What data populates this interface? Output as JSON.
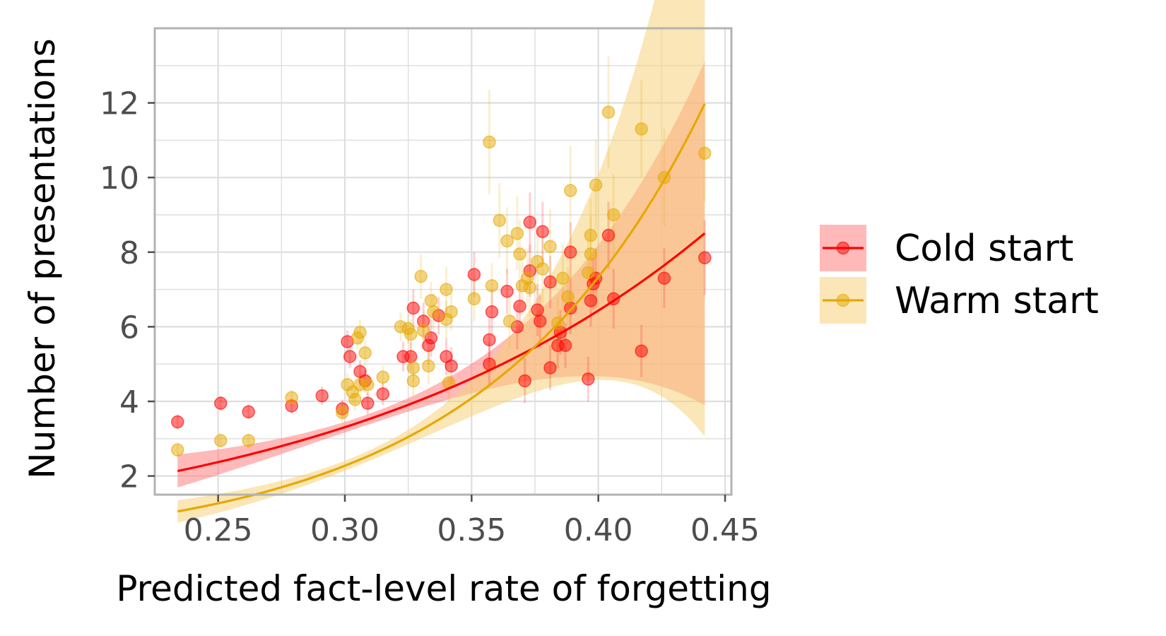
{
  "chart_data": {
    "type": "scatter",
    "title": "",
    "xlabel": "Predicted fact-level rate of forgetting",
    "ylabel": "Number of presentations",
    "xlim": [
      0.225,
      0.4525
    ],
    "ylim": [
      1.5,
      14.0
    ],
    "x_ticks": [
      0.25,
      0.3,
      0.35,
      0.4,
      0.45
    ],
    "x_tick_labels": [
      "0.25",
      "0.30",
      "0.35",
      "0.40",
      "0.45"
    ],
    "y_ticks": [
      2,
      4,
      6,
      8,
      10,
      12
    ],
    "y_tick_labels": [
      "2",
      "4",
      "6",
      "8",
      "10",
      "12"
    ],
    "grid": true,
    "legend_position": "right",
    "series": [
      {
        "name": "Cold start",
        "color": "#ff0000",
        "band_color": "#ff8080",
        "fit": {
          "a": 0.45,
          "b": 6.65,
          "x_range": [
            0.234,
            0.442
          ],
          "ci": 0.04
        },
        "points": [
          {
            "x": 0.234,
            "y": 3.45,
            "err": 0.2
          },
          {
            "x": 0.251,
            "y": 3.95,
            "err": 0.2
          },
          {
            "x": 0.262,
            "y": 3.72,
            "err": 0.2
          },
          {
            "x": 0.279,
            "y": 3.88,
            "err": 0.2
          },
          {
            "x": 0.291,
            "y": 4.15,
            "err": 0.25
          },
          {
            "x": 0.299,
            "y": 3.8,
            "err": 0.25
          },
          {
            "x": 0.301,
            "y": 5.6,
            "err": 0.3
          },
          {
            "x": 0.302,
            "y": 5.2,
            "err": 0.3
          },
          {
            "x": 0.306,
            "y": 4.8,
            "err": 0.3
          },
          {
            "x": 0.308,
            "y": 4.55,
            "err": 0.3
          },
          {
            "x": 0.309,
            "y": 3.95,
            "err": 0.3
          },
          {
            "x": 0.315,
            "y": 4.2,
            "err": 0.3
          },
          {
            "x": 0.323,
            "y": 5.2,
            "err": 0.4
          },
          {
            "x": 0.326,
            "y": 5.2,
            "err": 0.4
          },
          {
            "x": 0.327,
            "y": 6.5,
            "err": 0.5
          },
          {
            "x": 0.331,
            "y": 6.15,
            "err": 0.5
          },
          {
            "x": 0.333,
            "y": 5.5,
            "err": 0.5
          },
          {
            "x": 0.334,
            "y": 5.7,
            "err": 0.5
          },
          {
            "x": 0.337,
            "y": 6.3,
            "err": 0.5
          },
          {
            "x": 0.34,
            "y": 5.2,
            "err": 0.5
          },
          {
            "x": 0.342,
            "y": 4.95,
            "err": 0.5
          },
          {
            "x": 0.351,
            "y": 7.4,
            "err": 0.6
          },
          {
            "x": 0.357,
            "y": 5.65,
            "err": 0.6
          },
          {
            "x": 0.357,
            "y": 5.0,
            "err": 0.6
          },
          {
            "x": 0.358,
            "y": 6.4,
            "err": 0.6
          },
          {
            "x": 0.364,
            "y": 6.95,
            "err": 0.6
          },
          {
            "x": 0.368,
            "y": 6.0,
            "err": 0.6
          },
          {
            "x": 0.369,
            "y": 6.55,
            "err": 0.7
          },
          {
            "x": 0.371,
            "y": 4.55,
            "err": 0.6
          },
          {
            "x": 0.373,
            "y": 8.8,
            "err": 0.8
          },
          {
            "x": 0.373,
            "y": 7.5,
            "err": 0.7
          },
          {
            "x": 0.376,
            "y": 6.45,
            "err": 0.7
          },
          {
            "x": 0.377,
            "y": 6.15,
            "err": 0.7
          },
          {
            "x": 0.378,
            "y": 8.55,
            "err": 0.8
          },
          {
            "x": 0.381,
            "y": 4.9,
            "err": 0.6
          },
          {
            "x": 0.381,
            "y": 7.2,
            "err": 0.7
          },
          {
            "x": 0.384,
            "y": 5.5,
            "err": 0.6
          },
          {
            "x": 0.385,
            "y": 5.85,
            "err": 0.6
          },
          {
            "x": 0.387,
            "y": 5.5,
            "err": 0.6
          },
          {
            "x": 0.389,
            "y": 6.5,
            "err": 0.7
          },
          {
            "x": 0.389,
            "y": 8.0,
            "err": 0.8
          },
          {
            "x": 0.396,
            "y": 4.6,
            "err": 0.6
          },
          {
            "x": 0.397,
            "y": 6.7,
            "err": 0.7
          },
          {
            "x": 0.398,
            "y": 7.15,
            "err": 0.7
          },
          {
            "x": 0.399,
            "y": 7.3,
            "err": 0.8
          },
          {
            "x": 0.404,
            "y": 8.45,
            "err": 0.9
          },
          {
            "x": 0.406,
            "y": 6.75,
            "err": 0.8
          },
          {
            "x": 0.417,
            "y": 5.35,
            "err": 0.7
          },
          {
            "x": 0.426,
            "y": 7.3,
            "err": 0.8
          },
          {
            "x": 0.442,
            "y": 7.85,
            "err": 1.0
          }
        ]
      },
      {
        "name": "Warm start",
        "color": "#e6a800",
        "band_color": "#f5d27a",
        "fit": {
          "a": 0.068,
          "b": 11.7,
          "x_range": [
            0.234,
            0.442
          ],
          "ci": 0.055
        },
        "points": [
          {
            "x": 0.234,
            "y": 2.7,
            "err": 0.2
          },
          {
            "x": 0.251,
            "y": 2.95,
            "err": 0.2
          },
          {
            "x": 0.262,
            "y": 2.95,
            "err": 0.2
          },
          {
            "x": 0.279,
            "y": 4.1,
            "err": 0.2
          },
          {
            "x": 0.299,
            "y": 3.7,
            "err": 0.25
          },
          {
            "x": 0.301,
            "y": 4.45,
            "err": 0.3
          },
          {
            "x": 0.303,
            "y": 4.25,
            "err": 0.3
          },
          {
            "x": 0.304,
            "y": 4.05,
            "err": 0.3
          },
          {
            "x": 0.305,
            "y": 5.7,
            "err": 0.3
          },
          {
            "x": 0.306,
            "y": 5.85,
            "err": 0.35
          },
          {
            "x": 0.306,
            "y": 4.45,
            "err": 0.3
          },
          {
            "x": 0.308,
            "y": 5.3,
            "err": 0.35
          },
          {
            "x": 0.309,
            "y": 4.45,
            "err": 0.3
          },
          {
            "x": 0.315,
            "y": 4.65,
            "err": 0.3
          },
          {
            "x": 0.322,
            "y": 6.0,
            "err": 0.4
          },
          {
            "x": 0.325,
            "y": 5.95,
            "err": 0.4
          },
          {
            "x": 0.326,
            "y": 5.8,
            "err": 0.4
          },
          {
            "x": 0.327,
            "y": 4.9,
            "err": 0.4
          },
          {
            "x": 0.327,
            "y": 4.55,
            "err": 0.4
          },
          {
            "x": 0.33,
            "y": 7.35,
            "err": 0.6
          },
          {
            "x": 0.331,
            "y": 5.9,
            "err": 0.5
          },
          {
            "x": 0.333,
            "y": 4.95,
            "err": 0.5
          },
          {
            "x": 0.334,
            "y": 6.7,
            "err": 0.5
          },
          {
            "x": 0.335,
            "y": 6.4,
            "err": 0.5
          },
          {
            "x": 0.34,
            "y": 7.0,
            "err": 0.6
          },
          {
            "x": 0.34,
            "y": 6.2,
            "err": 0.5
          },
          {
            "x": 0.341,
            "y": 4.5,
            "err": 0.5
          },
          {
            "x": 0.342,
            "y": 6.4,
            "err": 0.5
          },
          {
            "x": 0.351,
            "y": 6.75,
            "err": 0.6
          },
          {
            "x": 0.357,
            "y": 10.95,
            "err": 1.4
          },
          {
            "x": 0.358,
            "y": 7.1,
            "err": 0.6
          },
          {
            "x": 0.361,
            "y": 8.85,
            "err": 1.0
          },
          {
            "x": 0.364,
            "y": 8.3,
            "err": 0.9
          },
          {
            "x": 0.365,
            "y": 6.15,
            "err": 0.7
          },
          {
            "x": 0.368,
            "y": 8.5,
            "err": 1.0
          },
          {
            "x": 0.369,
            "y": 7.95,
            "err": 0.9
          },
          {
            "x": 0.37,
            "y": 7.1,
            "err": 0.8
          },
          {
            "x": 0.372,
            "y": 7.3,
            "err": 0.8
          },
          {
            "x": 0.373,
            "y": 7.05,
            "err": 0.8
          },
          {
            "x": 0.376,
            "y": 7.75,
            "err": 0.9
          },
          {
            "x": 0.378,
            "y": 7.55,
            "err": 0.9
          },
          {
            "x": 0.381,
            "y": 8.15,
            "err": 1.0
          },
          {
            "x": 0.384,
            "y": 6.1,
            "err": 0.7
          },
          {
            "x": 0.386,
            "y": 7.3,
            "err": 0.9
          },
          {
            "x": 0.388,
            "y": 6.8,
            "err": 0.8
          },
          {
            "x": 0.389,
            "y": 9.65,
            "err": 1.2
          },
          {
            "x": 0.396,
            "y": 7.45,
            "err": 0.9
          },
          {
            "x": 0.397,
            "y": 7.95,
            "err": 1.0
          },
          {
            "x": 0.397,
            "y": 8.45,
            "err": 1.0
          },
          {
            "x": 0.399,
            "y": 9.8,
            "err": 1.2
          },
          {
            "x": 0.404,
            "y": 11.75,
            "err": 1.5
          },
          {
            "x": 0.406,
            "y": 9.0,
            "err": 1.1
          },
          {
            "x": 0.417,
            "y": 11.3,
            "err": 1.3
          },
          {
            "x": 0.426,
            "y": 10.0,
            "err": 1.3
          },
          {
            "x": 0.442,
            "y": 10.65,
            "err": 1.3
          }
        ]
      }
    ]
  }
}
